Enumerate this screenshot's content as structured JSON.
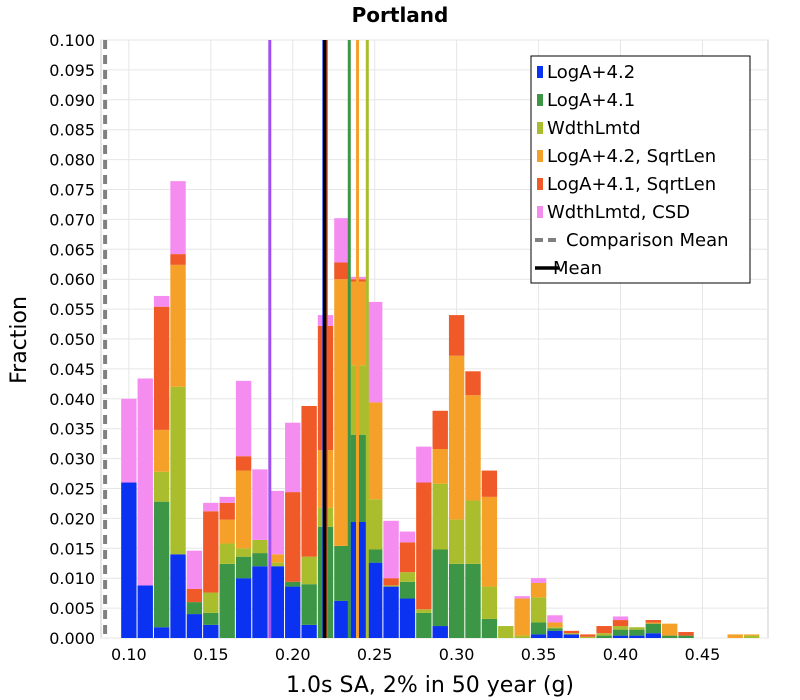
{
  "chart_data": {
    "type": "bar",
    "stacked": true,
    "title": "Portland",
    "xlabel": "1.0s SA, 2% in 50 year (g)",
    "ylabel": "Fraction",
    "xlim": [
      0.083,
      0.49
    ],
    "ylim": [
      0,
      0.1
    ],
    "bin_width": 0.01,
    "grid": true,
    "legend_position": "top-right",
    "x_ticks": [
      "0.10",
      "0.15",
      "0.20",
      "0.25",
      "0.30",
      "0.35",
      "0.40",
      "0.45"
    ],
    "y_ticks": [
      "0.000",
      "0.005",
      "0.010",
      "0.015",
      "0.020",
      "0.025",
      "0.030",
      "0.035",
      "0.040",
      "0.045",
      "0.050",
      "0.055",
      "0.060",
      "0.065",
      "0.070",
      "0.075",
      "0.080",
      "0.085",
      "0.090",
      "0.095",
      "0.100"
    ],
    "x": [
      0.1,
      0.11,
      0.12,
      0.13,
      0.14,
      0.15,
      0.16,
      0.17,
      0.18,
      0.19,
      0.2,
      0.21,
      0.22,
      0.23,
      0.24,
      0.25,
      0.26,
      0.27,
      0.28,
      0.29,
      0.3,
      0.31,
      0.32,
      0.33,
      0.34,
      0.35,
      0.36,
      0.37,
      0.38,
      0.39,
      0.4,
      0.41,
      0.42,
      0.43,
      0.44,
      0.45,
      0.46,
      0.47,
      0.48
    ],
    "series": [
      {
        "name": "LogA+4.2",
        "color": "#0a32f0",
        "values": [
          0.026,
          0.0088,
          0.0018,
          0.014,
          0.004,
          0.0022,
          0,
          0.01,
          0.012,
          0.012,
          0.0086,
          0.0022,
          0,
          0.0062,
          0.0194,
          0.0126,
          0.0086,
          0.0066,
          0,
          0.002,
          0,
          0,
          0,
          0,
          0,
          0.0006,
          0.0012,
          0.0006,
          0,
          0,
          0.0004,
          0.0004,
          0.0008,
          0,
          0,
          0,
          0,
          0,
          0
        ]
      },
      {
        "name": "LogA+4.1",
        "color": "#3c9646",
        "values": [
          0,
          0,
          0.021,
          0,
          0.002,
          0.002,
          0.0124,
          0.0036,
          0.0022,
          0,
          0.0008,
          0.0068,
          0.0186,
          0.0092,
          0.0146,
          0.0022,
          0,
          0.0028,
          0.0042,
          0.0128,
          0.0124,
          0.0124,
          0.0032,
          0,
          0,
          0.002,
          0.0004,
          0,
          0,
          0.0004,
          0.001,
          0.001,
          0.0016,
          0.0004,
          0.0004,
          0,
          0,
          0,
          0
        ]
      },
      {
        "name": "WdthLmtd",
        "color": "#aabe2d",
        "values": [
          0,
          0,
          0.005,
          0.028,
          0,
          0.0034,
          0.0034,
          0.0014,
          0.0022,
          0.0006,
          0,
          0.0046,
          0.0032,
          0,
          0.0116,
          0.0084,
          0.0002,
          0.0016,
          0.0006,
          0.011,
          0.0074,
          0.0106,
          0.0054,
          0.002,
          0.0004,
          0.0042,
          0.0002,
          0.0002,
          0.0002,
          0.0004,
          0.0006,
          0.0004,
          0,
          0,
          0,
          0,
          0,
          0,
          0.0004
        ]
      },
      {
        "name": "LogA+4.2, SqrtLen",
        "color": "#f5a028",
        "values": [
          0,
          0,
          0.007,
          0.0204,
          0,
          0,
          0.004,
          0.013,
          0,
          0.0014,
          0,
          0,
          0.0096,
          0.0446,
          0.014,
          0.0162,
          0,
          0,
          0,
          0.0058,
          0.0274,
          0.0176,
          0.015,
          0,
          0.0062,
          0.0024,
          0.0008,
          0,
          0,
          0,
          0,
          0,
          0.0002,
          0.002,
          0,
          0,
          0,
          0.0006,
          0.0002
        ]
      },
      {
        "name": "LogA+4.1, SqrtLen",
        "color": "#f05a28",
        "values": [
          0,
          0,
          0.0206,
          0.0018,
          0.0022,
          0.0136,
          0.0028,
          0.0024,
          0,
          0,
          0.015,
          0.0252,
          0.0208,
          0.0028,
          0.0004,
          0,
          0.0012,
          0.005,
          0.0212,
          0.0064,
          0.0068,
          0.004,
          0.0044,
          0,
          0,
          0,
          0,
          0.0004,
          0.0004,
          0.0012,
          0.001,
          0,
          0.0004,
          0,
          0.0006,
          0,
          0,
          0,
          0
        ]
      },
      {
        "name": "WdthLmtd, CSD",
        "color": "#f58cf0",
        "values": [
          0.014,
          0.0346,
          0.0018,
          0.0122,
          0.0064,
          0.0014,
          0.001,
          0.0126,
          0.0118,
          0.0106,
          0.0116,
          0,
          0.0018,
          0.0074,
          0.0004,
          0.0168,
          0.0096,
          0.0018,
          0.006,
          0,
          0,
          0,
          0,
          0,
          0.0004,
          0.0008,
          0.0012,
          0,
          0,
          0,
          0.0006,
          0,
          0,
          0,
          0,
          0,
          0,
          0,
          0
        ]
      }
    ],
    "vertical_lines": [
      {
        "series": "LogA+4.2",
        "x": 0.219,
        "color": "#0a32f0",
        "style": "solid"
      },
      {
        "series": "LogA+4.1",
        "x": 0.2345,
        "color": "#3c9646",
        "style": "solid"
      },
      {
        "series": "WdthLmtd",
        "x": 0.2455,
        "color": "#aabe2d",
        "style": "solid"
      },
      {
        "series": "LogA+4.2, SqrtLen",
        "x": 0.2395,
        "color": "#f5a028",
        "style": "solid"
      },
      {
        "series": "LogA+4.1, SqrtLen",
        "x": 0.2205,
        "color": "#f05a28",
        "style": "solid"
      },
      {
        "series": "WdthLmtd, CSD",
        "x": 0.186,
        "color": "#a050f0",
        "style": "solid"
      },
      {
        "series": "Comparison Mean",
        "x": 0.0855,
        "color": "#808080",
        "style": "dashed"
      },
      {
        "series": "Mean",
        "x": 0.2195,
        "color": "#000000",
        "style": "solid"
      }
    ],
    "legend": [
      {
        "label": "LogA+4.2",
        "color": "#0a32f0",
        "kind": "box"
      },
      {
        "label": "LogA+4.1",
        "color": "#3c9646",
        "kind": "box"
      },
      {
        "label": "WdthLmtd",
        "color": "#aabe2d",
        "kind": "box"
      },
      {
        "label": "LogA+4.2, SqrtLen",
        "color": "#f5a028",
        "kind": "box"
      },
      {
        "label": "LogA+4.1, SqrtLen",
        "color": "#f05a28",
        "kind": "box"
      },
      {
        "label": "WdthLmtd, CSD",
        "color": "#f58cf0",
        "kind": "box"
      },
      {
        "label": "Comparison Mean",
        "color": "#808080",
        "kind": "dashed"
      },
      {
        "label": "Mean",
        "color": "#000000",
        "kind": "line"
      }
    ]
  }
}
